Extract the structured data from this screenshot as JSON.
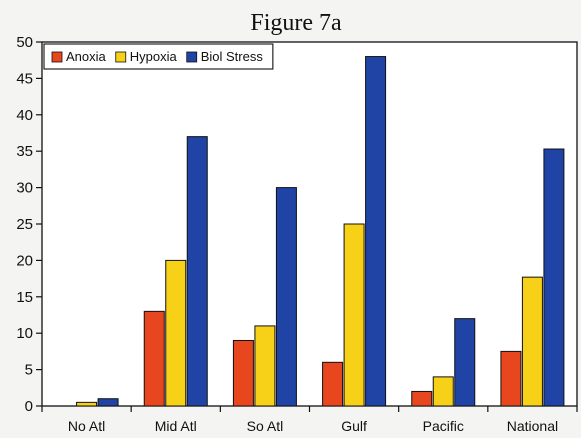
{
  "chart_data": {
    "type": "bar",
    "title": "Figure 7a",
    "xlabel": "",
    "ylabel": "",
    "categories": [
      "No Atl",
      "Mid Atl",
      "So Atl",
      "Gulf",
      "Pacific",
      "National"
    ],
    "series": [
      {
        "name": "Anoxia",
        "color": "#e8461e",
        "values": [
          0,
          13,
          9,
          6,
          2,
          7.5
        ]
      },
      {
        "name": "Hypoxia",
        "color": "#f7d117",
        "values": [
          0.5,
          20,
          11,
          25,
          4,
          17.7
        ]
      },
      {
        "name": "Biol Stress",
        "color": "#1f44a6",
        "values": [
          1,
          37,
          30,
          48,
          12,
          35.3
        ]
      }
    ],
    "ylim": [
      0,
      50
    ],
    "yticks": [
      0,
      5,
      10,
      15,
      20,
      25,
      30,
      35,
      40,
      45,
      50
    ],
    "grid": false,
    "legend_position": "top-left"
  }
}
